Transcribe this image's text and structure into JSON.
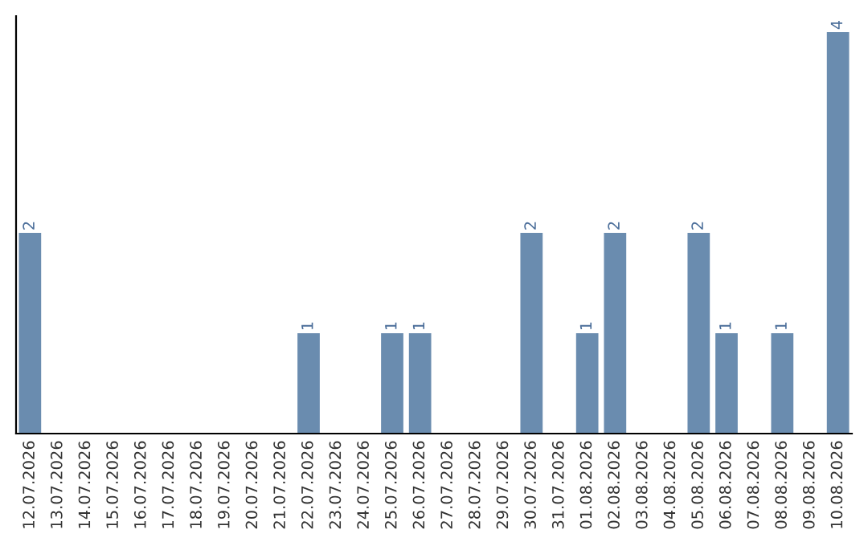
{
  "chart_data": {
    "type": "bar",
    "categories": [
      "12.07.2026",
      "13.07.2026",
      "14.07.2026",
      "15.07.2026",
      "16.07.2026",
      "17.07.2026",
      "18.07.2026",
      "19.07.2026",
      "20.07.2026",
      "21.07.2026",
      "22.07.2026",
      "23.07.2026",
      "24.07.2026",
      "25.07.2026",
      "26.07.2026",
      "27.07.2026",
      "28.07.2026",
      "29.07.2026",
      "30.07.2026",
      "31.07.2026",
      "01.08.2026",
      "02.08.2026",
      "03.08.2026",
      "04.08.2026",
      "05.08.2026",
      "06.08.2026",
      "07.08.2026",
      "08.08.2026",
      "09.08.2026",
      "10.08.2026"
    ],
    "values": [
      2,
      0,
      0,
      0,
      0,
      0,
      0,
      0,
      0,
      0,
      1,
      0,
      0,
      1,
      1,
      0,
      0,
      0,
      2,
      0,
      1,
      2,
      0,
      0,
      2,
      1,
      0,
      1,
      0,
      4
    ],
    "value_labels": [
      "2",
      null,
      null,
      null,
      null,
      null,
      null,
      null,
      null,
      null,
      "1",
      null,
      null,
      "1",
      "1",
      null,
      null,
      null,
      "2",
      null,
      "1",
      "2",
      null,
      null,
      "2",
      "1",
      null,
      "1",
      null,
      "4"
    ],
    "color": "#6a8caf",
    "relative": false,
    "grid": false,
    "legend": false
  }
}
